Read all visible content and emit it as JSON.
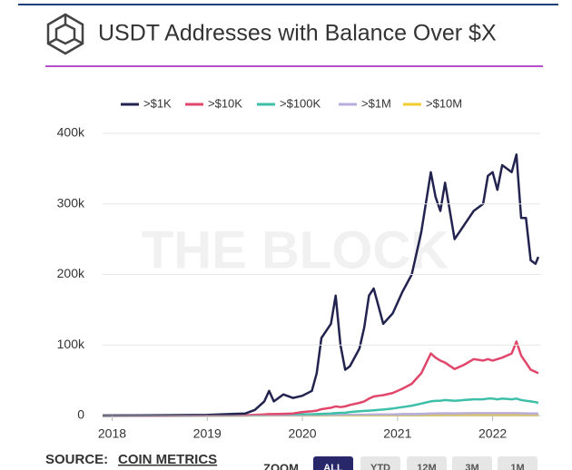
{
  "chart_data": {
    "type": "line",
    "title": "USDT Addresses with Balance Over $X",
    "watermark": "THE BLOCK",
    "x": [
      2017.9,
      2018.5,
      2019.0,
      2019.4,
      2019.5,
      2019.6,
      2019.65,
      2019.7,
      2019.8,
      2019.9,
      2020.0,
      2020.1,
      2020.15,
      2020.2,
      2020.3,
      2020.35,
      2020.4,
      2020.45,
      2020.5,
      2020.6,
      2020.65,
      2020.7,
      2020.75,
      2020.8,
      2020.85,
      2020.95,
      2021.05,
      2021.15,
      2021.25,
      2021.35,
      2021.4,
      2021.45,
      2021.5,
      2021.6,
      2021.7,
      2021.8,
      2021.9,
      2021.95,
      2022.0,
      2022.05,
      2022.1,
      2022.2,
      2022.25,
      2022.3,
      2022.35,
      2022.4,
      2022.45,
      2022.48
    ],
    "series": [
      {
        "name": ">$1K",
        "color": "#23234f",
        "values": [
          0,
          500,
          1000,
          3000,
          8000,
          20000,
          35000,
          20000,
          30000,
          25000,
          28000,
          35000,
          60000,
          110000,
          130000,
          170000,
          100000,
          65000,
          70000,
          95000,
          125000,
          170000,
          180000,
          155000,
          130000,
          145000,
          175000,
          200000,
          260000,
          345000,
          310000,
          290000,
          330000,
          250000,
          270000,
          290000,
          300000,
          340000,
          345000,
          320000,
          355000,
          345000,
          370000,
          280000,
          280000,
          220000,
          215000,
          225000
        ]
      },
      {
        "name": ">$10K",
        "color": "#e0476b",
        "values": [
          0,
          0,
          200,
          500,
          1000,
          1500,
          2000,
          2000,
          2500,
          3000,
          5000,
          6000,
          7000,
          9000,
          11000,
          13000,
          12000,
          13000,
          15000,
          18000,
          20000,
          24000,
          27000,
          28000,
          29000,
          32000,
          38000,
          45000,
          60000,
          88000,
          82000,
          78000,
          75000,
          66000,
          72000,
          80000,
          78000,
          80000,
          78000,
          80000,
          82000,
          88000,
          105000,
          85000,
          75000,
          65000,
          62000,
          60000
        ]
      },
      {
        "name": ">$100K",
        "color": "#3dbfa8",
        "values": [
          0,
          0,
          0,
          200,
          500,
          700,
          800,
          900,
          1000,
          1200,
          1500,
          1800,
          2000,
          2500,
          3000,
          3500,
          3800,
          4000,
          5000,
          6000,
          6500,
          7000,
          7500,
          8000,
          8500,
          10000,
          12000,
          14000,
          17000,
          20000,
          21000,
          21000,
          22000,
          21000,
          22000,
          23000,
          23000,
          24000,
          24000,
          23000,
          24000,
          23000,
          24000,
          22000,
          21000,
          20000,
          19000,
          18000
        ]
      },
      {
        "name": ">$1M",
        "color": "#b8acd9",
        "values": [
          0,
          0,
          0,
          100,
          200,
          200,
          300,
          300,
          300,
          400,
          500,
          500,
          600,
          600,
          700,
          800,
          800,
          900,
          1000,
          1100,
          1200,
          1300,
          1400,
          1500,
          1500,
          1700,
          2000,
          2200,
          2500,
          3000,
          3100,
          3100,
          3200,
          3100,
          3200,
          3300,
          3300,
          3400,
          3400,
          3300,
          3400,
          3300,
          3400,
          3200,
          3100,
          3000,
          3000,
          2900
        ]
      },
      {
        "name": ">$10M",
        "color": "#f2cc2e",
        "values": [
          0,
          0,
          0,
          50,
          100,
          100,
          100,
          100,
          100,
          100,
          150,
          150,
          150,
          150,
          200,
          200,
          200,
          200,
          250,
          250,
          250,
          250,
          300,
          300,
          300,
          300,
          350,
          400,
          400,
          450,
          450,
          450,
          500,
          500,
          500,
          500,
          500,
          550,
          550,
          550,
          550,
          550,
          550,
          500,
          500,
          500,
          500,
          500
        ]
      }
    ],
    "xlim": [
      2017.9,
      2022.5
    ],
    "xticks": [
      2018,
      2019,
      2020,
      2021,
      2022
    ],
    "ylim": [
      0,
      400000
    ],
    "yticks": [
      0,
      {
        "value": 100000,
        "label": "100k"
      },
      {
        "value": 200000,
        "label": "200k"
      },
      {
        "value": 300000,
        "label": "300k"
      },
      {
        "value": 400000,
        "label": "400k"
      }
    ],
    "grid": true,
    "legend": "top"
  },
  "source": {
    "label": "SOURCE:",
    "name": "COIN METRICS"
  },
  "zoom": {
    "label": "ZOOM",
    "buttons": [
      "ALL",
      "YTD",
      "12M",
      "3M",
      "1M"
    ]
  }
}
